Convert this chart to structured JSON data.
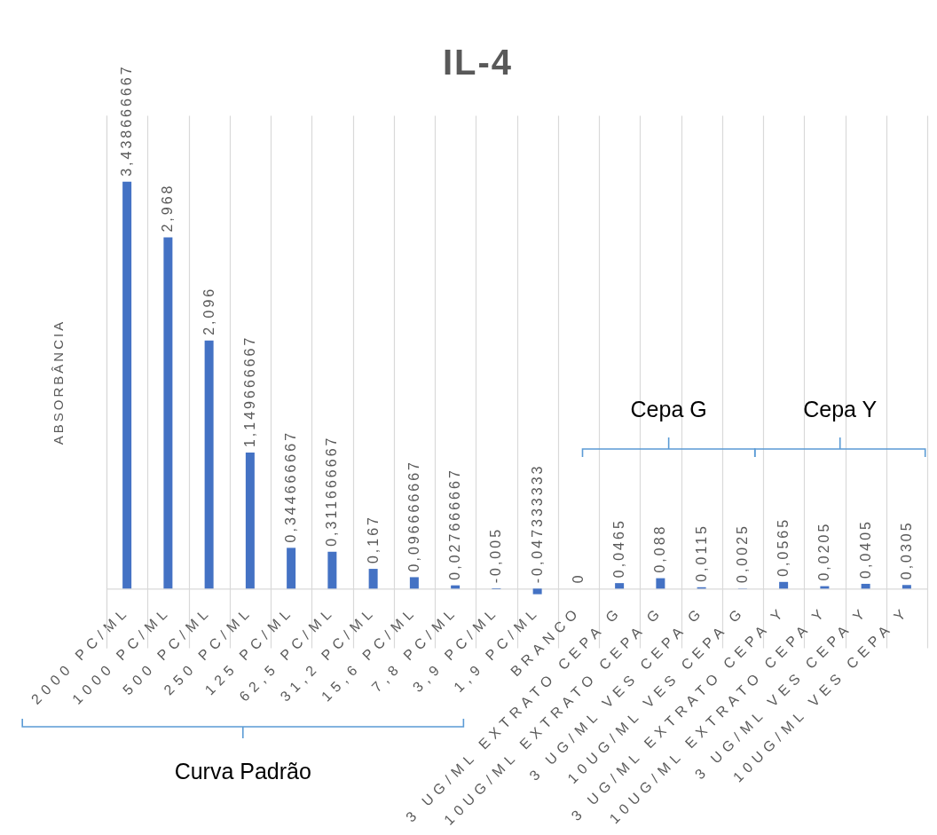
{
  "chart_data": {
    "type": "bar",
    "title": "IL-4",
    "ylabel": "ABSORBÂNCIA",
    "categories": [
      "2000 PC/ML",
      "1000 PC/ML",
      "500 PC/ML",
      "250 PC/ML",
      "125 PC/ML",
      "62,5 PC/ML",
      "31,2 PC/ML",
      "15,6 PC/ML",
      "7,8 PC/ML",
      "3,9 PC/ML",
      "1,9 PC/ML",
      "BRANCO",
      "3 UG/ML EXTRATO CEPA G",
      "10UG/ML EXTRATO CEPA G",
      "3 UG/ML VES CEPA G",
      "10UG/ML VES CEPA G",
      "3 UG/ML EXTRATO CEPA Y",
      "10UG/ML EXTRATO CEPA Y",
      "3 UG/ML VES CEPA Y",
      "10UG/ML VES CEPA Y"
    ],
    "values": [
      3.438666667,
      2.968,
      2.096,
      1.149666667,
      0.344666667,
      0.311666667,
      0.167,
      0.096666667,
      0.027666667,
      -0.005,
      -0.047333333,
      0,
      0.0465,
      0.088,
      0.0115,
      0.0025,
      0.0565,
      0.0205,
      0.0405,
      0.0305
    ],
    "value_labels": [
      "3,438666667",
      "2,968",
      "2,096",
      "1,149666667",
      "0,344666667",
      "0,311666667",
      "0,167",
      "0,096666667",
      "0,027666667",
      "-0,005",
      "-0,047333333",
      "0",
      "0,0465",
      "0,088",
      "0,0115",
      "0,0025",
      "0,0565",
      "0,0205",
      "0,0405",
      "0,0305"
    ],
    "color": "#4472c4",
    "ylim": [
      -0.5,
      4
    ],
    "grid": "x",
    "tick_labels": "x",
    "annotations": [
      "Curva Padrão",
      "Cepa G",
      "Cepa Y"
    ]
  }
}
